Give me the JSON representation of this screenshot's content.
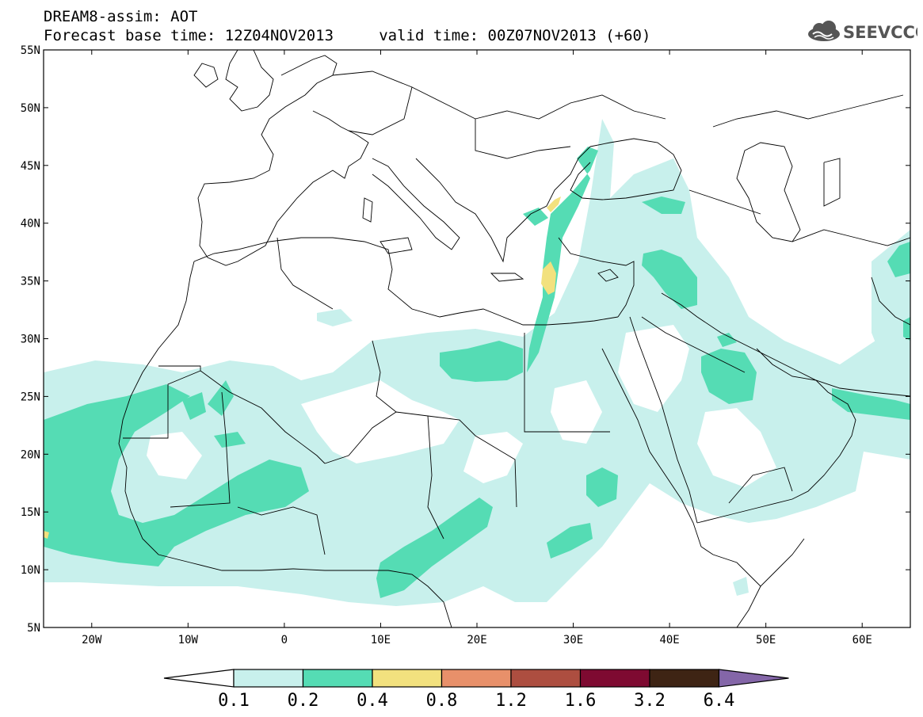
{
  "header": {
    "line1": "DREAM8-assim: AOT",
    "line2": "Forecast base time: 12Z04NOV2013     valid time: 00Z07NOV2013 (+60)"
  },
  "logo": {
    "text": "SEEVCCC",
    "icon": "cloud-icon",
    "color": "#555555"
  },
  "map": {
    "lon_range": [
      -25,
      65
    ],
    "lat_range": [
      5,
      55
    ],
    "lat_ticks": [
      "5N",
      "10N",
      "15N",
      "20N",
      "25N",
      "30N",
      "35N",
      "40N",
      "45N",
      "50N",
      "55N"
    ],
    "lon_ticks": [
      "20W",
      "10W",
      "0",
      "10E",
      "20E",
      "30E",
      "40E",
      "50E",
      "60E"
    ]
  },
  "colorbar": {
    "labels": [
      "0.1",
      "0.2",
      "0.4",
      "0.8",
      "1.2",
      "1.6",
      "3.2",
      "6.4"
    ],
    "colors": [
      "#ffffff",
      "#c8f0ec",
      "#55dcb4",
      "#f2e17e",
      "#e8906a",
      "#ad4e40",
      "#7e0a31",
      "#3e2414",
      "#8466a8"
    ]
  }
}
